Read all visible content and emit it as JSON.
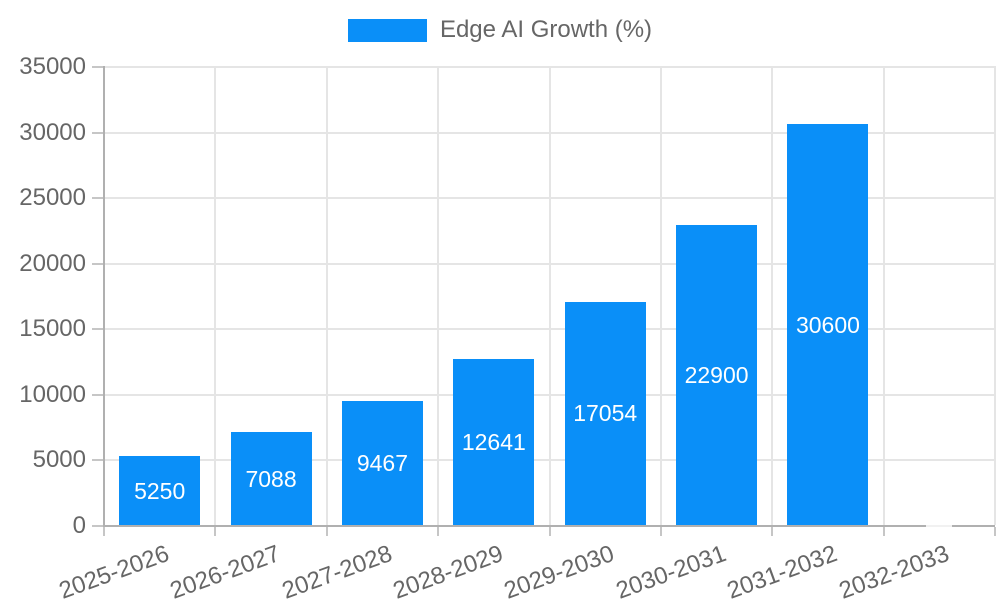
{
  "legend": {
    "label": "Edge AI Growth (%)"
  },
  "colors": {
    "bar": "#0a8ff8",
    "axis_line": "#b0b0b0",
    "grid_line": "#e5e5e5",
    "tick_mark": "#c6c6c6",
    "tick_label": "#666666",
    "bar_label": "#ffffff",
    "background": "#ffffff"
  },
  "chart_data": {
    "type": "bar",
    "title": "Edge AI Growth (%)",
    "categories": [
      "2025-2026",
      "2026-2027",
      "2027-2028",
      "2028-2029",
      "2029-2030",
      "2030-2031",
      "2031-2032",
      "2032-2033"
    ],
    "values": [
      5250,
      7088,
      9467,
      12641,
      17054,
      22900,
      30600,
      0
    ],
    "bar_labels": [
      "5250",
      "7088",
      "9467",
      "12641",
      "17054",
      "22900",
      "30600",
      ""
    ],
    "yticks": [
      0,
      5000,
      10000,
      15000,
      20000,
      25000,
      30000,
      35000
    ],
    "ytick_labels": [
      "0",
      "5000",
      "10000",
      "15000",
      "20000",
      "25000",
      "30000",
      "35000"
    ],
    "ylim": [
      0,
      35000
    ],
    "xlabel": "",
    "ylabel": "",
    "grid": true,
    "legend_position": "top",
    "x_label_rotation_deg": -20
  }
}
